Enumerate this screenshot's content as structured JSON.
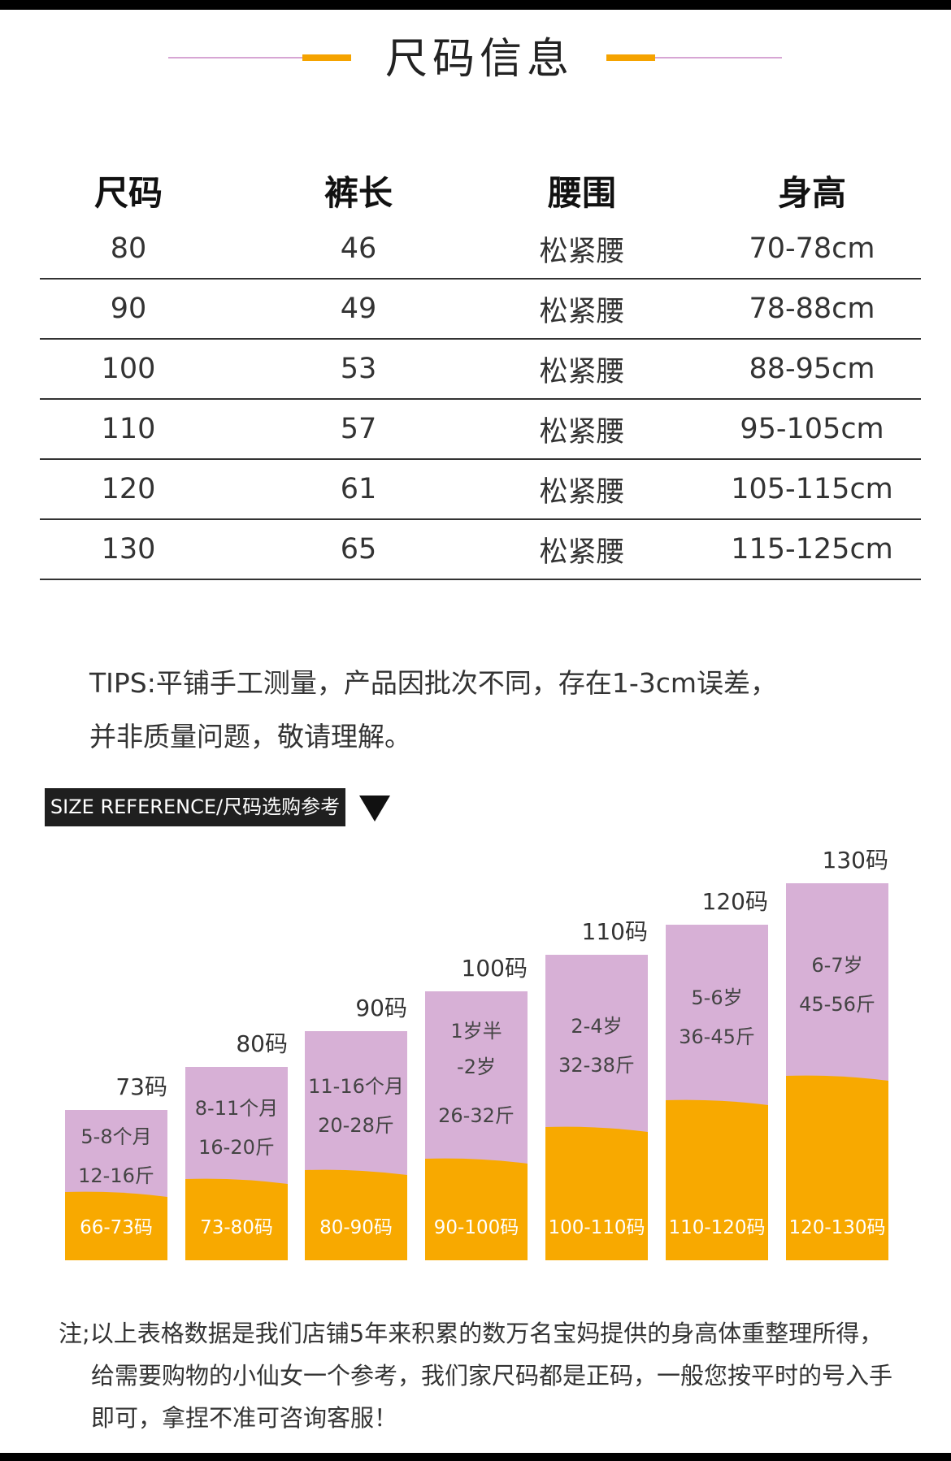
{
  "title": "尺码信息",
  "table": {
    "headers": [
      "尺码",
      "裤长",
      "腰围",
      "身高"
    ],
    "rows": [
      [
        "80",
        "46",
        "松紧腰",
        "70-78cm"
      ],
      [
        "90",
        "49",
        "松紧腰",
        "78-88cm"
      ],
      [
        "100",
        "53",
        "松紧腰",
        "88-95cm"
      ],
      [
        "110",
        "57",
        "松紧腰",
        "95-105cm"
      ],
      [
        "120",
        "61",
        "松紧腰",
        "105-115cm"
      ],
      [
        "130",
        "65",
        "松紧腰",
        "115-125cm"
      ]
    ]
  },
  "tips": {
    "line1": "TIPS:平铺手工测量，产品因批次不同，存在1-3cm误差，",
    "line2": "并非质量问题，敬请理解。"
  },
  "reference": {
    "badge": "SIZE REFERENCE/尺码选购参考",
    "bars": [
      {
        "label": "73码",
        "age": "5-8个月",
        "weight": "12-16斤",
        "range": "66-73码"
      },
      {
        "label": "80码",
        "age": "8-11个月",
        "weight": "16-20斤",
        "range": "73-80码"
      },
      {
        "label": "90码",
        "age": "11-16个月",
        "weight": "20-28斤",
        "range": "80-90码"
      },
      {
        "label": "100码",
        "age": "1岁半",
        "age2": "-2岁",
        "weight": "26-32斤",
        "range": "90-100码"
      },
      {
        "label": "110码",
        "age": "2-4岁",
        "weight": "32-38斤",
        "range": "100-110码"
      },
      {
        "label": "120码",
        "age": "5-6岁",
        "weight": "36-45斤",
        "range": "110-120码"
      },
      {
        "label": "130码",
        "age": "6-7岁",
        "weight": "45-56斤",
        "range": "120-130码"
      }
    ]
  },
  "note": {
    "line1": "注;以上表格数据是我们店铺5年来积累的数万名宝妈提供的身高体重整理所得，",
    "line2": "给需要购物的小仙女一个参考，我们家尺码都是正码，一般您按平时的号入手",
    "line3": "即可，拿捏不准可咨询客服！"
  },
  "colors": {
    "bar_top": "#d7b0d6",
    "bar_bottom": "#f8a900",
    "accent_line": "#d7a6d4",
    "accent_orange": "#f5a300"
  }
}
